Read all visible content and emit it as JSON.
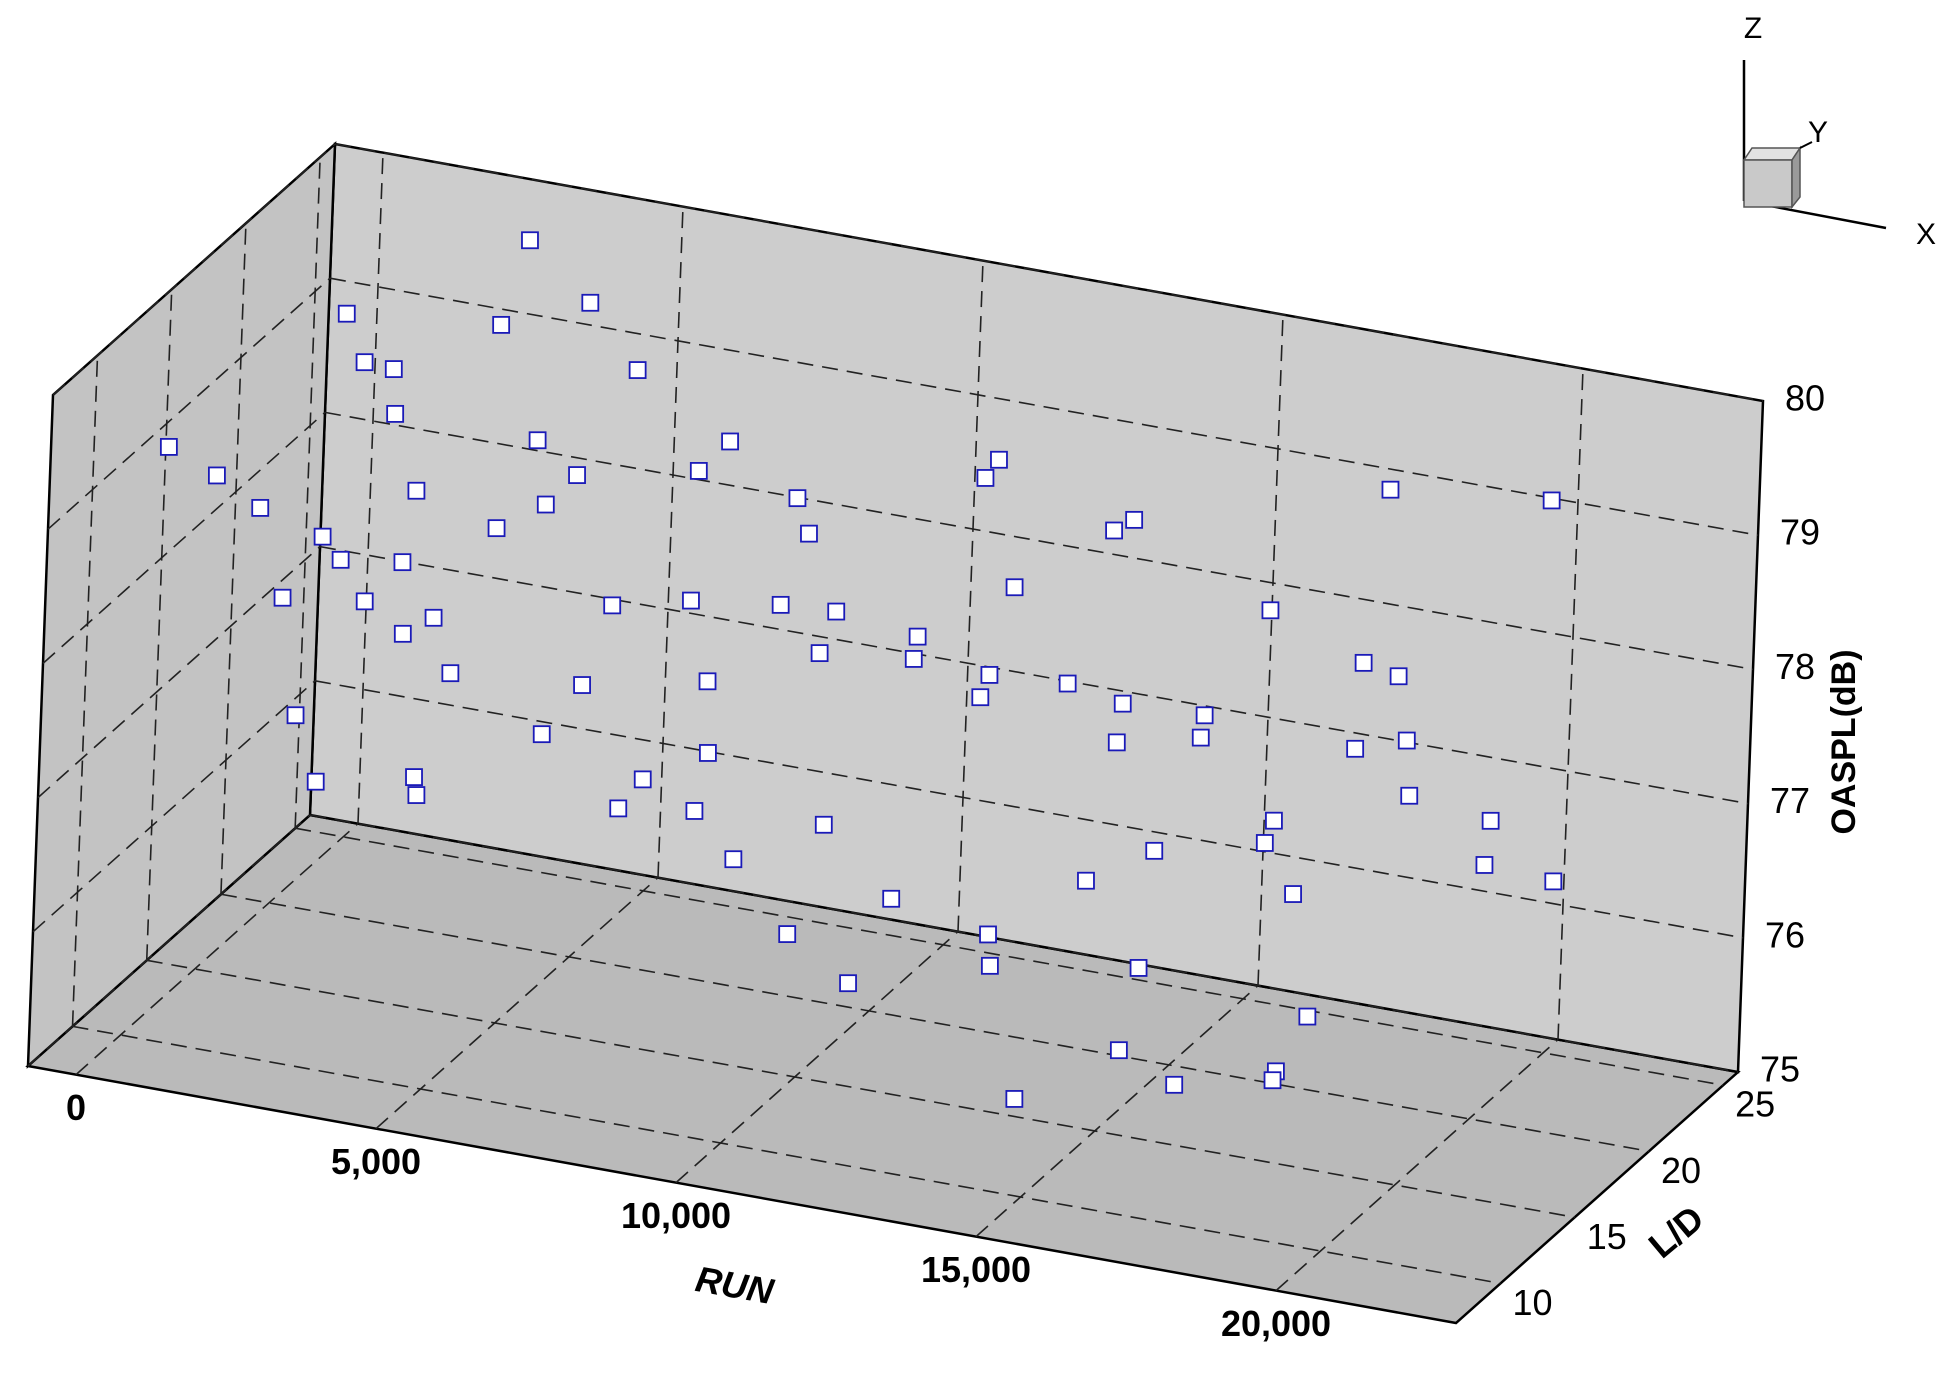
{
  "chart_data": {
    "type": "scatter3d",
    "x_label": "RUN",
    "y_label": "L/D",
    "z_label": "OASPL(dB)",
    "axis_triad": [
      "X",
      "Y",
      "Z"
    ],
    "xlim": [
      -800,
      23000
    ],
    "xticks": [
      0,
      {
        "value": 5000,
        "label": "5,000"
      },
      {
        "value": 10000,
        "label": "10,000"
      },
      {
        "value": 15000,
        "label": "15,000"
      },
      {
        "value": 20000,
        "label": "20,000"
      }
    ],
    "ylim": [
      7,
      26
    ],
    "yticks": [
      10,
      15,
      20,
      25
    ],
    "zlim": [
      75,
      80
    ],
    "zticks": [
      75,
      76,
      77,
      78,
      79,
      80
    ],
    "grid": true,
    "color": "#1a1ab8",
    "x": [
      200,
      500,
      800,
      1100,
      1400,
      1700,
      2000,
      2300,
      2600,
      2900,
      3200,
      3500,
      3800,
      4100,
      4400,
      4700,
      5000,
      5300,
      5600,
      5900,
      6200,
      6500,
      6800,
      7100,
      7400,
      7700,
      8000,
      8300,
      8600,
      8900,
      9200,
      9500,
      9800,
      10100,
      10400,
      10700,
      11000,
      11300,
      11600,
      11900,
      12200,
      12500,
      12800,
      13100,
      13400,
      13700,
      14000,
      14300,
      14600,
      14900,
      15200,
      15500,
      15800,
      16100,
      16400,
      16700,
      17000,
      17300,
      17600,
      17900,
      18200,
      18500,
      18800,
      19100,
      19400,
      19700,
      20000,
      20300,
      300,
      1500,
      2700,
      4000,
      6000,
      8500,
      10500,
      12900,
      15100,
      17500,
      19800,
      900,
      3300,
      7300,
      11100,
      16300,
      20100,
      600,
      2200,
      5200
    ],
    "y": [
      11,
      22,
      15,
      24,
      18,
      13,
      20,
      25,
      12,
      17,
      23,
      16,
      14,
      21,
      19,
      10,
      11,
      22,
      15,
      24,
      18,
      13,
      20,
      25,
      12,
      17,
      23,
      16,
      14,
      21,
      19,
      10,
      11,
      22,
      15,
      24,
      18,
      13,
      20,
      25,
      12,
      17,
      23,
      16,
      14,
      21,
      19,
      10,
      11,
      22,
      15,
      24,
      18,
      13,
      20,
      25,
      12,
      17,
      23,
      16,
      14,
      21,
      19,
      10,
      11,
      22,
      15,
      24,
      14,
      21,
      10,
      24,
      16,
      20,
      12,
      25,
      18,
      22,
      25,
      19,
      12,
      15,
      23,
      11,
      20,
      25,
      16,
      13
    ],
    "z": [
      79.3,
      77.4,
      78.5,
      76.7,
      79.7,
      78.1,
      77.7,
      79.0,
      76.9,
      78.6,
      79.9,
      77.8,
      76.7,
      78.2,
      78.9,
      77.3,
      78.0,
      79.2,
      77.2,
      78.3,
      76.4,
      79.4,
      77.8,
      77.3,
      78.6,
      76.6,
      78.1,
      79.5,
      77.4,
      76.2,
      77.7,
      78.4,
      77.0,
      77.6,
      78.5,
      77.0,
      77.9,
      76.0,
      79.1,
      77.1,
      76.8,
      78.0,
      75.9,
      78.8,
      76.2,
      77.2,
      79.0,
      76.9,
      75.6,
      77.4,
      78.2,
      76.3,
      77.7,
      76.5,
      78.5,
      77.0,
      75.8,
      77.3,
      79.2,
      76.9,
      75.8,
      77.6,
      78.3,
      76.2,
      76.6,
      77.0,
      77.9,
      76.4,
      78.8,
      79.0,
      77.6,
      79.4,
      77.5,
      78.7,
      76.4,
      78.4,
      76.8,
      78.0,
      79.1,
      77.9,
      78.3,
      77.0,
      78.9,
      76.1,
      76.9,
      78.2,
      79.6,
      78.9
    ]
  }
}
